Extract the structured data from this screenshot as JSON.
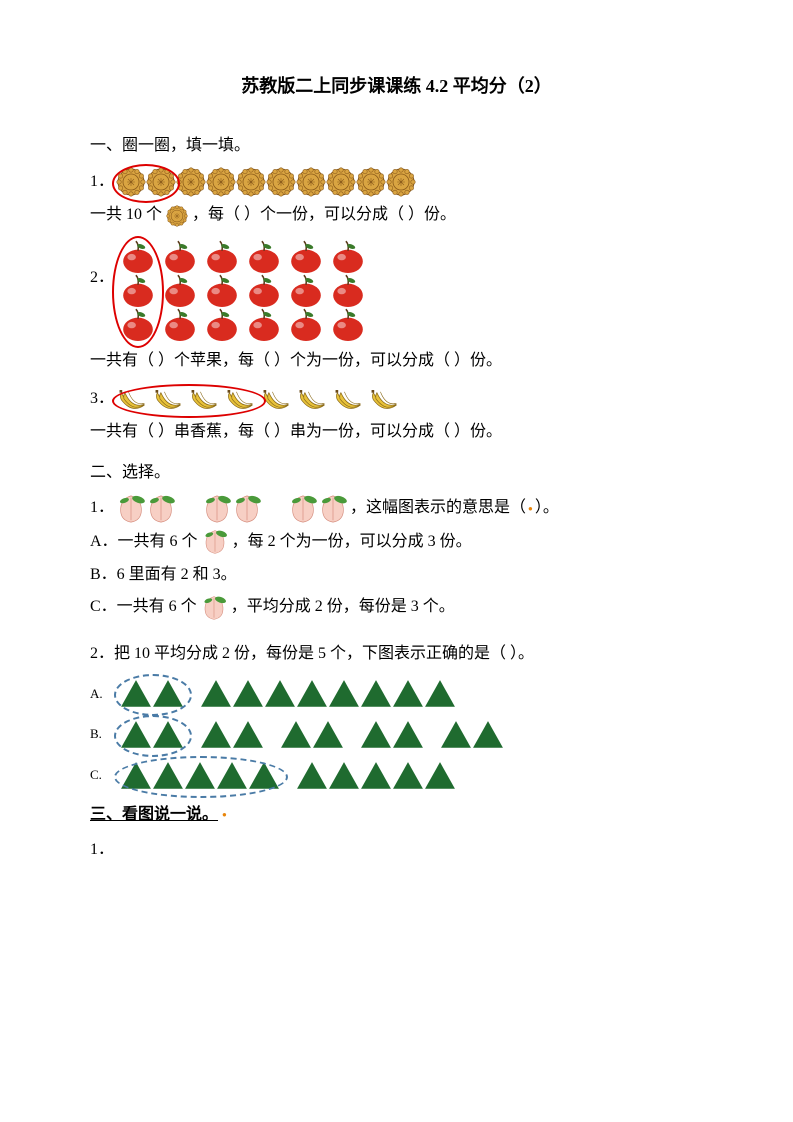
{
  "title": "苏教版二上同步课课练 4.2  平均分（2）",
  "section1": {
    "head": "一、圈一圈，填一填。",
    "q1": {
      "num": "1．",
      "count": 10,
      "circled": 2,
      "line": "一共 10 个",
      "line_tail": "，每（   ）个一份，可以分成（   ）份。",
      "icon_fill": "#d9a441",
      "icon_stroke": "#8a5a1a"
    },
    "q2": {
      "num": "2．",
      "rows": 3,
      "cols": 6,
      "line": "一共有（   ）个苹果，每（   ）个为一份，可以分成（   ）份。",
      "icon_fill": "#d92b1f",
      "leaf_fill": "#3a7a2a"
    },
    "q3": {
      "num": "3．",
      "count": 8,
      "circled": 4,
      "line": "一共有（   ）串香蕉，每（   ）串为一份，可以分成（   ）份。",
      "icon_fill": "#e8c23a",
      "icon_stroke": "#8a6a1a"
    }
  },
  "section2": {
    "head": "二、选择。",
    "q1": {
      "num": "1．",
      "groups": 3,
      "per_group": 2,
      "tail": "，这幅图表示的意思是（    ",
      "tail2": "）。",
      "optA_pre": "A．一共有 6 个",
      "optA_post": "，每 2 个为一份，可以分成 3 份。",
      "optB": "B．6 里面有 2 和 3。",
      "optC_pre": "C．一共有 6 个",
      "optC_post": "，平均分成 2 份，每份是 3 个。",
      "icon_fill": "#f7cfc4",
      "leaf_fill": "#4a9a3a"
    },
    "q2": {
      "text": "2．把 10 平均分成 2 份，每份是 5 个，下图表示正确的是（    ）。",
      "tri_fill": "#1f6b2f",
      "dash_color": "#4a7ba6",
      "A": {
        "label": "A.",
        "groups": [
          2,
          8
        ]
      },
      "B": {
        "label": "B.",
        "groups": [
          2,
          2,
          2,
          2,
          2
        ]
      },
      "C": {
        "label": "C.",
        "groups": [
          5,
          5
        ]
      }
    }
  },
  "section3": {
    "head": "三、看图说一说。",
    "q1": "1．"
  }
}
